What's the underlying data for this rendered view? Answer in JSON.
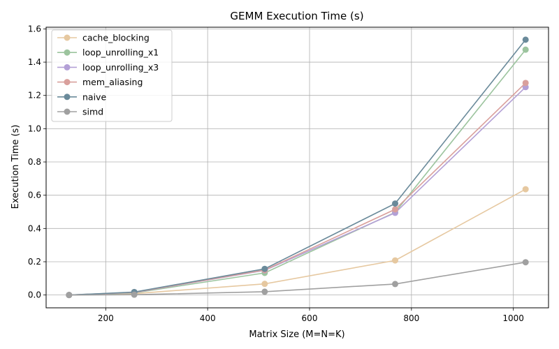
{
  "chart_data": {
    "type": "line",
    "title": "GEMM Execution Time (s)",
    "xlabel": "Matrix Size (M=N=K)",
    "ylabel": "Execution Time (s)",
    "x": [
      128,
      256,
      512,
      768,
      1024
    ],
    "xlim": [
      83,
      1069
    ],
    "ylim": [
      -0.077,
      1.61
    ],
    "xticks": [
      200,
      400,
      600,
      800,
      1000
    ],
    "yticks": [
      0.0,
      0.2,
      0.4,
      0.6,
      0.8,
      1.0,
      1.2,
      1.4,
      1.6
    ],
    "grid": true,
    "legend_position": "top-left",
    "series": [
      {
        "name": "cache_blocking",
        "color": "#e6c8a0",
        "values": [
          0.0,
          0.008,
          0.067,
          0.208,
          0.636
        ]
      },
      {
        "name": "loop_unrolling_x1",
        "color": "#9cc49e",
        "values": [
          0.0,
          0.013,
          0.133,
          0.497,
          1.475
        ]
      },
      {
        "name": "loop_unrolling_x3",
        "color": "#b3a0d6",
        "values": [
          0.0,
          0.015,
          0.148,
          0.494,
          1.25
        ]
      },
      {
        "name": "mem_aliasing",
        "color": "#d9a09c",
        "values": [
          0.0,
          0.016,
          0.15,
          0.515,
          1.275
        ]
      },
      {
        "name": "naive",
        "color": "#6a8a9a",
        "values": [
          0.0,
          0.018,
          0.157,
          0.55,
          1.535
        ]
      },
      {
        "name": "simd",
        "color": "#a0a0a0",
        "values": [
          0.0,
          0.002,
          0.02,
          0.066,
          0.197
        ]
      }
    ]
  }
}
